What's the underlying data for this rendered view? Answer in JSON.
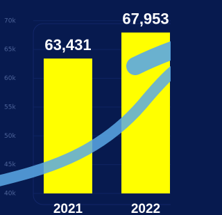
{
  "chart_data": {
    "type": "bar",
    "categories": [
      "2021",
      "2022"
    ],
    "values": [
      63431,
      67953
    ],
    "value_labels": [
      "63,431",
      "67,953"
    ],
    "color": "#ffff00",
    "ylim": [
      40000,
      73600
    ],
    "yticks": [
      {
        "value": 40000,
        "label": "40k"
      },
      {
        "value": 45000,
        "label": "45k"
      },
      {
        "value": 50000,
        "label": "50k"
      },
      {
        "value": 55000,
        "label": "55k"
      },
      {
        "value": 60000,
        "label": "60k"
      },
      {
        "value": 65000,
        "label": "65k"
      },
      {
        "value": 70000,
        "label": "70k"
      }
    ],
    "grid": true
  }
}
